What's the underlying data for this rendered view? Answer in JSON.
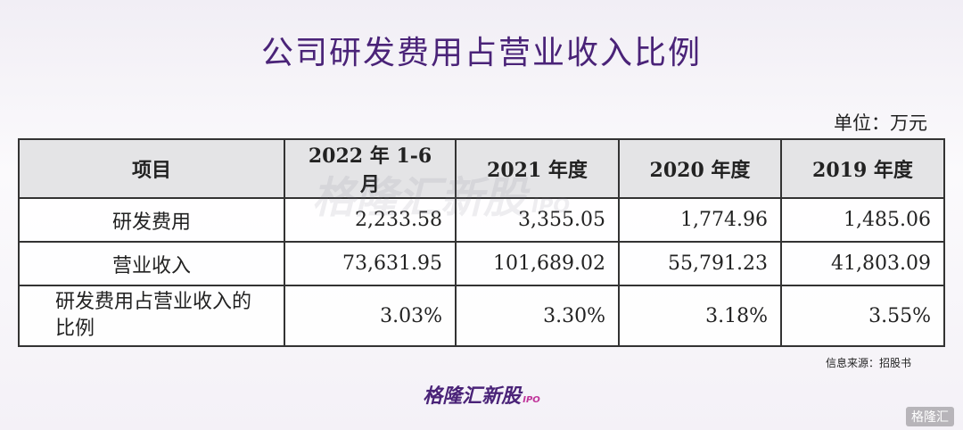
{
  "header": {
    "title": "公司研发费用占营业收入比例",
    "unit": "单位：万元"
  },
  "table": {
    "columns": [
      "项目",
      "2022 年 1-6 月",
      "2021 年度",
      "2020 年度",
      "2019 年度"
    ],
    "rows": [
      [
        "研发费用",
        "2,233.58",
        "3,355.05",
        "1,774.96",
        "1,485.06"
      ],
      [
        "营业收入",
        "73,631.95",
        "101,689.02",
        "55,791.23",
        "41,803.09"
      ],
      [
        "研发费用占营业收入的比例",
        "3.03%",
        "3.30%",
        "3.18%",
        "3.55%"
      ]
    ]
  },
  "footer": {
    "source": "信息来源：招股书",
    "logo": "格隆汇新股",
    "logo_tag": "IPO",
    "corner": "格隆汇"
  },
  "watermark": {
    "text": "格隆汇新股",
    "tag": "IPO"
  }
}
